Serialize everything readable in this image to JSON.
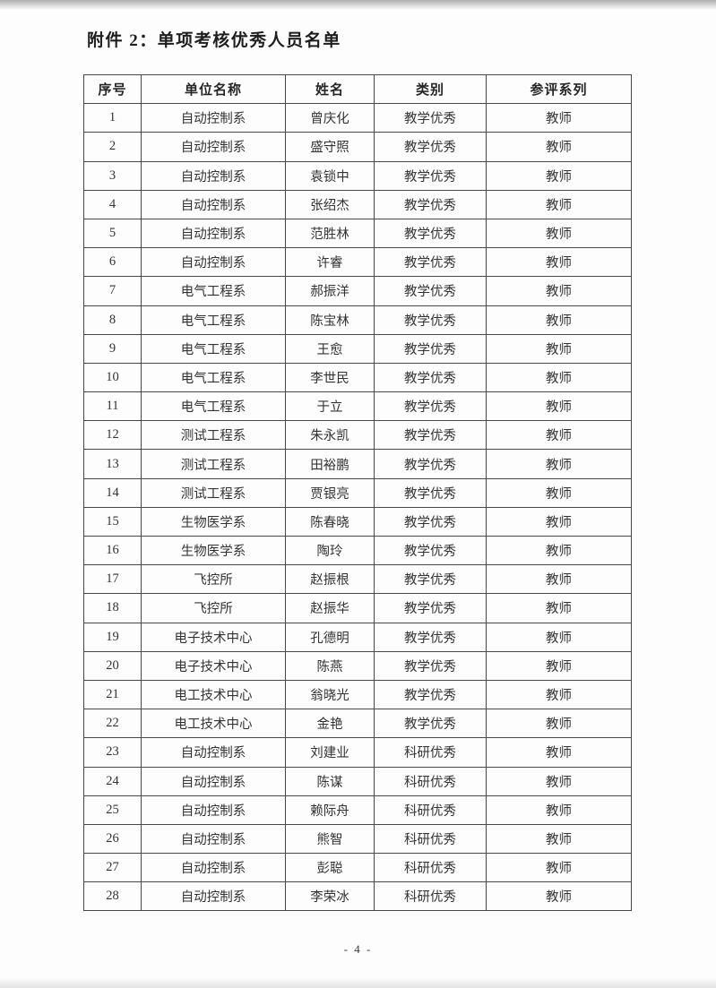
{
  "document": {
    "title": "附件 2：单项考核优秀人员名单",
    "page_number": "- 4 -"
  },
  "table": {
    "headers": [
      "序号",
      "单位名称",
      "姓名",
      "类别",
      "参评系列"
    ],
    "rows": [
      [
        "1",
        "自动控制系",
        "曾庆化",
        "教学优秀",
        "教师"
      ],
      [
        "2",
        "自动控制系",
        "盛守照",
        "教学优秀",
        "教师"
      ],
      [
        "3",
        "自动控制系",
        "袁锁中",
        "教学优秀",
        "教师"
      ],
      [
        "4",
        "自动控制系",
        "张绍杰",
        "教学优秀",
        "教师"
      ],
      [
        "5",
        "自动控制系",
        "范胜林",
        "教学优秀",
        "教师"
      ],
      [
        "6",
        "自动控制系",
        "许睿",
        "教学优秀",
        "教师"
      ],
      [
        "7",
        "电气工程系",
        "郝振洋",
        "教学优秀",
        "教师"
      ],
      [
        "8",
        "电气工程系",
        "陈宝林",
        "教学优秀",
        "教师"
      ],
      [
        "9",
        "电气工程系",
        "王愈",
        "教学优秀",
        "教师"
      ],
      [
        "10",
        "电气工程系",
        "李世民",
        "教学优秀",
        "教师"
      ],
      [
        "11",
        "电气工程系",
        "于立",
        "教学优秀",
        "教师"
      ],
      [
        "12",
        "测试工程系",
        "朱永凯",
        "教学优秀",
        "教师"
      ],
      [
        "13",
        "测试工程系",
        "田裕鹏",
        "教学优秀",
        "教师"
      ],
      [
        "14",
        "测试工程系",
        "贾银亮",
        "教学优秀",
        "教师"
      ],
      [
        "15",
        "生物医学系",
        "陈春晓",
        "教学优秀",
        "教师"
      ],
      [
        "16",
        "生物医学系",
        "陶玲",
        "教学优秀",
        "教师"
      ],
      [
        "17",
        "飞控所",
        "赵振根",
        "教学优秀",
        "教师"
      ],
      [
        "18",
        "飞控所",
        "赵振华",
        "教学优秀",
        "教师"
      ],
      [
        "19",
        "电子技术中心",
        "孔德明",
        "教学优秀",
        "教师"
      ],
      [
        "20",
        "电子技术中心",
        "陈燕",
        "教学优秀",
        "教师"
      ],
      [
        "21",
        "电工技术中心",
        "翁晓光",
        "教学优秀",
        "教师"
      ],
      [
        "22",
        "电工技术中心",
        "金艳",
        "教学优秀",
        "教师"
      ],
      [
        "23",
        "自动控制系",
        "刘建业",
        "科研优秀",
        "教师"
      ],
      [
        "24",
        "自动控制系",
        "陈谋",
        "科研优秀",
        "教师"
      ],
      [
        "25",
        "自动控制系",
        "赖际舟",
        "科研优秀",
        "教师"
      ],
      [
        "26",
        "自动控制系",
        "熊智",
        "科研优秀",
        "教师"
      ],
      [
        "27",
        "自动控制系",
        "彭聪",
        "科研优秀",
        "教师"
      ],
      [
        "28",
        "自动控制系",
        "李荣冰",
        "科研优秀",
        "教师"
      ]
    ]
  }
}
